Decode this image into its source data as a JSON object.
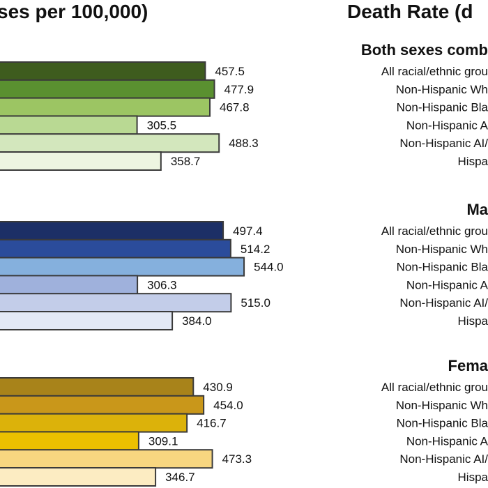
{
  "chart_data": [
    {
      "type": "bar",
      "orientation": "horizontal",
      "title": "ses per 100,000)",
      "groups": [
        {
          "name": "Both sexes combined",
          "colors": [
            "#3e5c1e",
            "#5a9030",
            "#9cc563",
            "#b9d993",
            "#d3e7bd",
            "#edf5e1"
          ],
          "values": [
            457.5,
            477.9,
            467.8,
            305.5,
            488.3,
            358.7
          ],
          "labels": [
            "457.5",
            "477.9",
            "467.8",
            "305.5",
            "488.3",
            "358.7"
          ]
        },
        {
          "name": "Males",
          "colors": [
            "#1c2f66",
            "#2b4c9b",
            "#85b0dd",
            "#9fb1dc",
            "#c3cde9",
            "#e3e9f6"
          ],
          "values": [
            497.4,
            514.2,
            544.0,
            306.3,
            515.0,
            384.0
          ],
          "labels": [
            "497.4",
            "514.2",
            "544.0",
            "306.3",
            "515.0",
            "384.0"
          ]
        },
        {
          "name": "Females",
          "colors": [
            "#a8831a",
            "#c9971a",
            "#dcb20a",
            "#ebc000",
            "#f7d680",
            "#fcecc2"
          ],
          "values": [
            430.9,
            454.0,
            416.7,
            309.1,
            473.3,
            346.7
          ],
          "labels": [
            "430.9",
            "454.0",
            "416.7",
            "309.1",
            "473.3",
            "346.7"
          ]
        }
      ]
    },
    {
      "type": "bar",
      "orientation": "horizontal",
      "title": "Death Rate (d",
      "groups": [
        {
          "name": "Both sexes comb",
          "categories": [
            "All racial/ethnic grou",
            "Non-Hispanic Wh",
            "Non-Hispanic Bla",
            "Non-Hispanic A",
            "Non-Hispanic AI/",
            "Hispa"
          ]
        },
        {
          "name": "Ma",
          "categories": [
            "All racial/ethnic grou",
            "Non-Hispanic Wh",
            "Non-Hispanic Bla",
            "Non-Hispanic A",
            "Non-Hispanic AI/",
            "Hispa"
          ]
        },
        {
          "name": "Fema",
          "categories": [
            "All racial/ethnic grou",
            "Non-Hispanic Wh",
            "Non-Hispanic Bla",
            "Non-Hispanic A",
            "Non-Hispanic AI/",
            "Hispa"
          ]
        }
      ]
    }
  ]
}
